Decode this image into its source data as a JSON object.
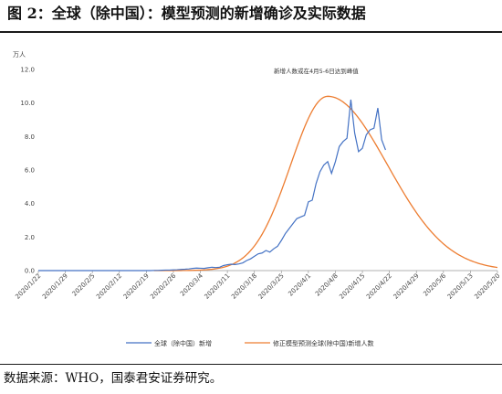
{
  "header": {
    "title": "图 2：全球（除中国）：模型预测的新增确诊及实际数据"
  },
  "footer": {
    "source": "数据来源：WHO，国泰君安证券研究。"
  },
  "chart_data": {
    "type": "line",
    "ylabel": "万人",
    "ylim": [
      0,
      12
    ],
    "yticks": [
      "0.0",
      "2.0",
      "4.0",
      "6.0",
      "8.0",
      "10.0",
      "12.0"
    ],
    "x_tick_labels": [
      "2020/1/22",
      "2020/1/29",
      "2020/2/5",
      "2020/2/12",
      "2020/2/19",
      "2020/2/26",
      "2020/3/4",
      "2020/3/11",
      "2020/3/18",
      "2020/3/25",
      "2020/4/1",
      "2020/4/8",
      "2020/4/15",
      "2020/4/22",
      "2020/4/29",
      "2020/5/6",
      "2020/5/13",
      "2020/5/20"
    ],
    "annotation": "新增人数或在4月5-6日达到峰值",
    "grid": false,
    "legend_position": "bottom",
    "series": [
      {
        "name": "全球（除中国）新增",
        "color": "#4472C4",
        "start_date": "2020/1/22",
        "end_date": "2020/4/15",
        "values": [
          0,
          0,
          0,
          0,
          0,
          0,
          0,
          0,
          0,
          0,
          0,
          0,
          0,
          0,
          0,
          0,
          0,
          0,
          0,
          0,
          0,
          0,
          0,
          0,
          0,
          0,
          0,
          0,
          0,
          0,
          0.01,
          0.01,
          0.02,
          0.03,
          0.03,
          0.04,
          0.05,
          0.07,
          0.08,
          0.1,
          0.13,
          0.15,
          0.14,
          0.13,
          0.17,
          0.2,
          0.18,
          0.2,
          0.3,
          0.35,
          0.38,
          0.36,
          0.4,
          0.46,
          0.6,
          0.7,
          0.85,
          1.0,
          1.05,
          1.2,
          1.1,
          1.3,
          1.45,
          1.8,
          2.2,
          2.5,
          2.8,
          3.1,
          3.2,
          3.3,
          4.1,
          4.2,
          5.2,
          5.9,
          6.3,
          6.5,
          5.8,
          6.5,
          7.4,
          7.7,
          7.9,
          10.2,
          8.2,
          7.1,
          7.3,
          8.1,
          8.4,
          8.5,
          9.7,
          7.8,
          7.2
        ]
      },
      {
        "name": "修正模型预测全球(除中国)新增人数",
        "color": "#ED7D31",
        "peak_date": "2020/4/6",
        "peak_value": 10.4
      }
    ]
  }
}
